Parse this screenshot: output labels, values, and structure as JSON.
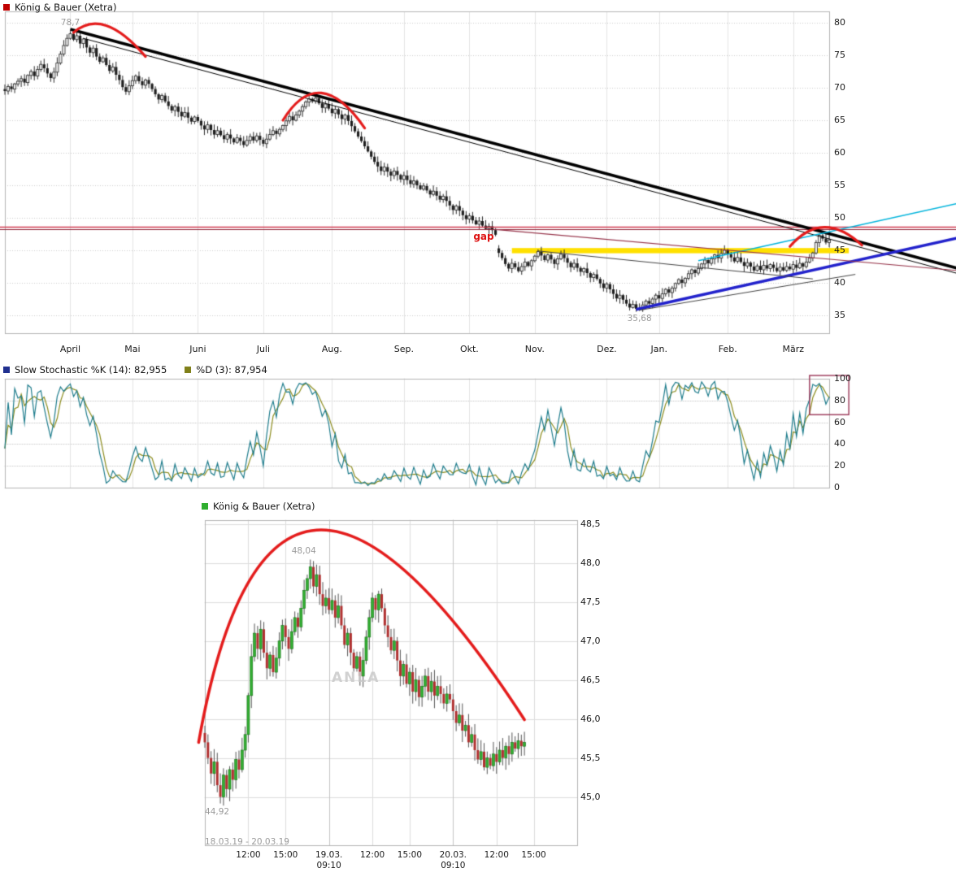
{
  "chart_data": [
    {
      "type": "candlestick",
      "panel": "daily",
      "title": "König & Bauer (Xetra)",
      "legend_marker_color": "#c00000",
      "x_ticks": [
        {
          "label": "April",
          "day": 20
        },
        {
          "label": "Mai",
          "day": 39
        },
        {
          "label": "Juni",
          "day": 59
        },
        {
          "label": "Juli",
          "day": 79
        },
        {
          "label": "Aug.",
          "day": 100
        },
        {
          "label": "Sep.",
          "day": 122
        },
        {
          "label": "Okt.",
          "day": 142
        },
        {
          "label": "Nov.",
          "day": 162
        },
        {
          "label": "Dez.",
          "day": 184
        },
        {
          "label": "Jan.",
          "day": 200
        },
        {
          "label": "Feb.",
          "day": 221
        },
        {
          "label": "März",
          "day": 241
        }
      ],
      "y_ticks": [
        80,
        75,
        70,
        65,
        60,
        55,
        50,
        45,
        40,
        35
      ],
      "ylim": [
        32.25,
        81.75
      ],
      "closes": [
        69.5,
        70.2,
        69.8,
        70.6,
        71.0,
        71.4,
        70.8,
        71.9,
        72.5,
        71.8,
        72.8,
        73.6,
        73.0,
        72.2,
        71.5,
        72.4,
        73.8,
        75.2,
        76.5,
        77.6,
        78.3,
        77.4,
        78.0,
        76.8,
        77.5,
        76.2,
        75.4,
        76.1,
        74.8,
        74.0,
        74.6,
        73.5,
        72.6,
        73.2,
        72.0,
        71.2,
        70.1,
        69.4,
        70.3,
        71.1,
        71.8,
        71.0,
        70.4,
        71.2,
        70.6,
        69.8,
        69.0,
        68.2,
        68.8,
        67.9,
        67.2,
        66.5,
        67.1,
        66.3,
        65.6,
        66.2,
        65.4,
        64.8,
        65.5,
        64.9,
        64.2,
        63.6,
        64.3,
        63.5,
        62.8,
        63.4,
        62.7,
        62.1,
        62.8,
        62.2,
        61.6,
        62.3,
        61.8,
        61.2,
        61.9,
        62.5,
        61.9,
        62.6,
        62.0,
        61.4,
        62.1,
        62.8,
        63.4,
        62.9,
        63.6,
        64.2,
        64.9,
        65.6,
        65.0,
        65.8,
        66.4,
        67.1,
        67.8,
        68.3,
        67.9,
        68.4,
        67.6,
        66.9,
        67.5,
        66.8,
        66.1,
        66.7,
        65.9,
        65.2,
        65.8,
        64.9,
        64.1,
        63.3,
        62.5,
        61.8,
        61.0,
        60.2,
        59.4,
        58.6,
        57.9,
        57.2,
        57.8,
        57.1,
        56.5,
        57.2,
        56.6,
        55.9,
        56.5,
        55.8,
        55.2,
        55.7,
        55.0,
        54.4,
        54.9,
        54.2,
        53.6,
        54.1,
        53.4,
        52.8,
        53.3,
        52.6,
        51.9,
        51.2,
        51.8,
        51.1,
        50.4,
        49.8,
        50.3,
        49.6,
        49.0,
        49.5,
        48.8,
        48.3,
        48.7,
        48.1,
        47.4,
        44.6,
        43.8,
        42.9,
        42.2,
        43.0,
        42.4,
        41.8,
        42.5,
        43.2,
        42.6,
        43.4,
        44.1,
        44.8,
        44.2,
        43.5,
        44.3,
        43.6,
        42.9,
        43.7,
        44.4,
        43.8,
        43.1,
        42.4,
        43.0,
        42.3,
        41.7,
        42.2,
        41.5,
        40.8,
        41.3,
        40.6,
        39.9,
        39.2,
        39.8,
        39.0,
        38.3,
        37.6,
        38.1,
        37.4,
        36.8,
        36.2,
        36.7,
        36.0,
        35.9,
        36.6,
        37.2,
        36.8,
        37.5,
        38.1,
        37.6,
        38.3,
        39.0,
        38.5,
        39.2,
        39.9,
        40.5,
        40.0,
        40.7,
        41.4,
        42.0,
        41.5,
        42.2,
        42.9,
        43.5,
        43.0,
        43.7,
        44.3,
        43.8,
        44.5,
        45.0,
        44.4,
        43.9,
        43.3,
        43.9,
        43.2,
        42.6,
        43.1,
        42.5,
        41.9,
        42.6,
        42.0,
        42.7,
        42.2,
        42.8,
        42.3,
        41.8,
        42.4,
        41.9,
        42.5,
        42.1,
        42.8,
        42.3,
        43.0,
        42.5,
        43.2,
        43.8,
        44.6,
        46.2,
        47.3,
        46.8,
        46.2,
        46.6
      ],
      "gap_candle": {
        "day": 151,
        "open": 45.3
      },
      "high_label": {
        "text": "78,7",
        "day": 20,
        "price": 78.7
      },
      "low_label": {
        "text": "35,68",
        "day": 194,
        "price": 35.68
      },
      "gap_label": {
        "text": "gap",
        "day": 151,
        "price": 47.1,
        "color": "#dd1111"
      },
      "resistance_lines": [
        {
          "price": 48.6,
          "color": "#d23b4f",
          "width": 1.3
        },
        {
          "price": 48.3,
          "color": "#8f2438",
          "width": 1
        }
      ],
      "support_zone": {
        "day_from": 155,
        "day_to": 258,
        "price_from": 44.55,
        "price_to": 45.35,
        "color": "#ffe000"
      },
      "trendlines": [
        {
          "d1": 20,
          "p1": 79.0,
          "d2": 293,
          "p2": 42.0,
          "color": "#000000",
          "width": 3.5
        },
        {
          "d1": 24,
          "p1": 77.6,
          "d2": 293,
          "p2": 41.2,
          "color": "#000000",
          "width": 1
        },
        {
          "d1": 193,
          "p1": 35.9,
          "d2": 293,
          "p2": 47.1,
          "color": "#2222cc",
          "width": 3.5
        },
        {
          "d1": 212,
          "p1": 43.4,
          "d2": 293,
          "p2": 52.4,
          "color": "#00b4dc",
          "width": 1.4
        },
        {
          "d1": 150,
          "p1": 48.2,
          "d2": 293,
          "p2": 41.8,
          "color": "#97344a",
          "width": 1.1
        },
        {
          "d1": 194,
          "p1": 35.8,
          "d2": 260,
          "p2": 41.3,
          "color": "#444444",
          "width": 1
        },
        {
          "d1": 163,
          "p1": 44.9,
          "d2": 247,
          "p2": 40.6,
          "color": "#444444",
          "width": 1
        }
      ],
      "red_arcs": [
        {
          "d0": 21,
          "p0": 78.5,
          "dc": 30,
          "pc": 82.5,
          "d1": 43,
          "p1": 74.8
        },
        {
          "d0": 85,
          "p0": 65.0,
          "dc": 96,
          "pc": 74.0,
          "d1": 110,
          "p1": 63.8
        },
        {
          "d0": 240,
          "p0": 45.6,
          "dc": 250,
          "pc": 51.4,
          "d1": 262,
          "p1": 45.8
        }
      ],
      "arc_color": "#e41c1c"
    },
    {
      "type": "line",
      "panel": "stochastic",
      "series": [
        {
          "label": "Slow Stochastic %K (14): 82,955",
          "marker_color": "#20308f",
          "line_color": "#1d7c8c"
        },
        {
          "label": "%D (3): 87,954",
          "marker_color": "#80801a",
          "line_color": "#8c8c1d"
        }
      ],
      "y_ticks": [
        100,
        80,
        60,
        40,
        20,
        0
      ],
      "ylim": [
        0,
        100
      ],
      "k_period": 14,
      "d_period": 3,
      "highlight_box": {
        "day_from": 246,
        "day_to": 258,
        "val_from": 67,
        "val_to": 103,
        "color": "#993355"
      }
    },
    {
      "type": "candlestick",
      "panel": "intraday",
      "title": "König & Bauer (Xetra)",
      "legend_marker_color": "#2fae2f",
      "range_label": "18.03.19 - 20.03.19",
      "watermark": "ANLA",
      "x_axis_bars": 120,
      "day_boundaries": [
        40,
        80
      ],
      "x_ticks": [
        {
          "label": "12:00",
          "bar": 14
        },
        {
          "label": "15:00",
          "bar": 26
        },
        {
          "label": "19.03.",
          "label2": "09:10",
          "bar": 40
        },
        {
          "label": "12:00",
          "bar": 54
        },
        {
          "label": "15:00",
          "bar": 66
        },
        {
          "label": "20.03.",
          "label2": "09:10",
          "bar": 80
        },
        {
          "label": "12:00",
          "bar": 94
        },
        {
          "label": "15:00",
          "bar": 106
        }
      ],
      "y_ticks": [
        {
          "label": "48,5",
          "value": 48.5
        },
        {
          "label": "48,0",
          "value": 48.0
        },
        {
          "label": "47,5",
          "value": 47.5
        },
        {
          "label": "47,0",
          "value": 47.0
        },
        {
          "label": "46,5",
          "value": 46.5
        },
        {
          "label": "46,0",
          "value": 46.0
        },
        {
          "label": "45,5",
          "value": 45.5
        },
        {
          "label": "45,0",
          "value": 45.0
        }
      ],
      "ylim": [
        44.38,
        48.55
      ],
      "closes": [
        45.7,
        45.5,
        45.3,
        45.45,
        45.15,
        45.0,
        45.28,
        45.1,
        45.35,
        45.22,
        45.48,
        45.35,
        45.6,
        45.8,
        46.3,
        46.8,
        47.1,
        46.9,
        47.15,
        46.85,
        46.65,
        46.82,
        46.6,
        46.78,
        47.0,
        47.2,
        47.05,
        46.9,
        47.12,
        47.3,
        47.18,
        47.42,
        47.65,
        47.8,
        47.95,
        47.7,
        47.85,
        47.6,
        47.45,
        47.55,
        47.4,
        47.52,
        47.3,
        47.45,
        47.2,
        46.95,
        47.1,
        46.85,
        46.65,
        46.8,
        46.55,
        46.75,
        47.05,
        47.3,
        47.55,
        47.4,
        47.6,
        47.42,
        47.2,
        47.05,
        46.88,
        47.0,
        46.75,
        46.55,
        46.7,
        46.45,
        46.6,
        46.35,
        46.5,
        46.28,
        46.42,
        46.55,
        46.35,
        46.48,
        46.3,
        46.42,
        46.32,
        46.2,
        46.32,
        46.25,
        46.1,
        45.95,
        46.05,
        45.85,
        45.92,
        45.7,
        45.8,
        45.6,
        45.48,
        45.58,
        45.38,
        45.5,
        45.4,
        45.55,
        45.45,
        45.6,
        45.5,
        45.65,
        45.55,
        45.7,
        45.62,
        45.72,
        45.65,
        45.7
      ],
      "high_label": {
        "text": "48,04",
        "bar": 34,
        "price": 48.04
      },
      "low_label": {
        "text": "44,92",
        "bar": 5,
        "price": 44.92
      },
      "red_arc": {
        "b0": -2,
        "p0": 45.7,
        "bc": 21.5,
        "pc": 51.0,
        "b1": 103,
        "p1": 45.99,
        "color": "#e41c1c"
      }
    }
  ]
}
